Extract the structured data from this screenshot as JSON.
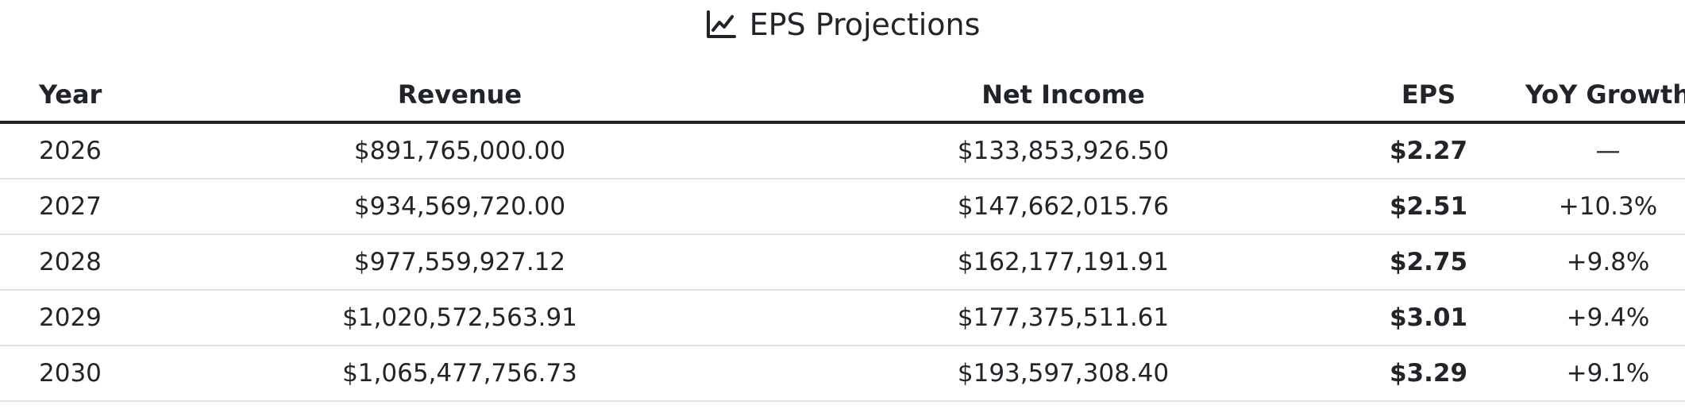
{
  "title": {
    "icon": "line-chart-icon",
    "text": "EPS Projections"
  },
  "colors": {
    "text": "#212529",
    "positive_growth": "#2e8b57",
    "header_rule": "#212529",
    "row_rule": "#dee2e6"
  },
  "table": {
    "headers": {
      "year": "Year",
      "revenue": "Revenue",
      "net_income": "Net Income",
      "eps": "EPS",
      "yoy_growth": "YoY Growth"
    },
    "rows": [
      {
        "year": "2026",
        "revenue": "$891,765,000.00",
        "net_income": "$133,853,926.50",
        "eps": "$2.27",
        "yoy_growth": "—"
      },
      {
        "year": "2027",
        "revenue": "$934,569,720.00",
        "net_income": "$147,662,015.76",
        "eps": "$2.51",
        "yoy_growth": "+10.3%"
      },
      {
        "year": "2028",
        "revenue": "$977,559,927.12",
        "net_income": "$162,177,191.91",
        "eps": "$2.75",
        "yoy_growth": "+9.8%"
      },
      {
        "year": "2029",
        "revenue": "$1,020,572,563.91",
        "net_income": "$177,375,511.61",
        "eps": "$3.01",
        "yoy_growth": "+9.4%"
      },
      {
        "year": "2030",
        "revenue": "$1,065,477,756.73",
        "net_income": "$193,597,308.40",
        "eps": "$3.29",
        "yoy_growth": "+9.1%"
      }
    ]
  }
}
